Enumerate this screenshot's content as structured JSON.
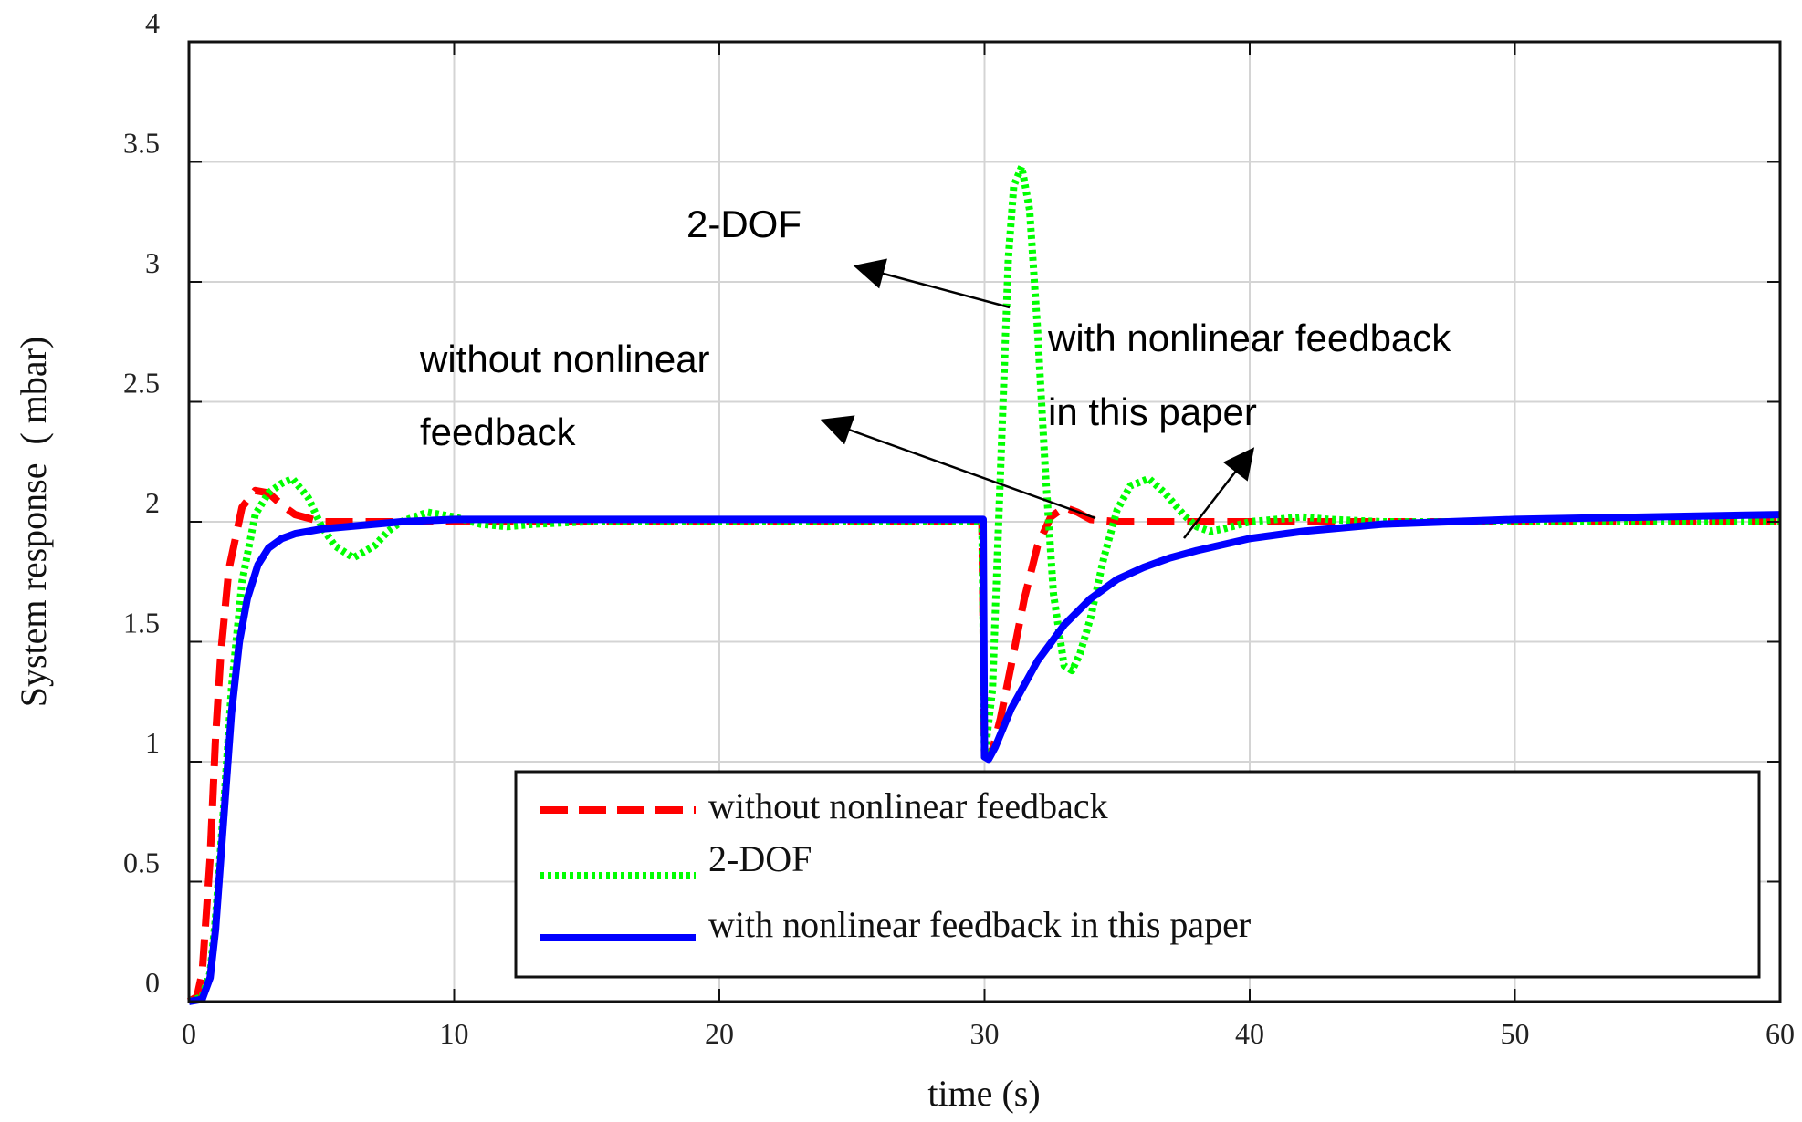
{
  "chart_data": {
    "type": "line",
    "title": "",
    "xlabel": "time (s)",
    "ylabel": "System response  ( mbar)",
    "xlim": [
      0,
      60
    ],
    "ylim": [
      0,
      4
    ],
    "grid": true,
    "x_ticks": [
      "0",
      "10",
      "20",
      "30",
      "40",
      "50",
      "60"
    ],
    "y_ticks": [
      "0",
      "0.5",
      "1",
      "1.5",
      "2",
      "2.5",
      "3",
      "3.5",
      "4"
    ],
    "legend_position": "bottom-right",
    "series": [
      {
        "name": "without nonlinear feedback",
        "color": "#ff0000",
        "style": "dashed",
        "x": [
          0,
          0.3,
          0.5,
          0.8,
          1.0,
          1.2,
          1.5,
          2.0,
          2.5,
          3.0,
          3.5,
          4.0,
          5.0,
          6.0,
          8.0,
          10.0,
          20.0,
          29.9,
          30.0,
          30.3,
          30.6,
          31.0,
          31.5,
          32.0,
          32.5,
          33.0,
          33.5,
          34.0,
          35.0,
          36.0,
          40.0,
          50.0,
          60.0
        ],
        "y": [
          0,
          0.02,
          0.12,
          0.6,
          1.1,
          1.45,
          1.8,
          2.06,
          2.13,
          2.12,
          2.07,
          2.03,
          2.0,
          2.0,
          2.0,
          2.0,
          2.0,
          2.0,
          1.02,
          1.05,
          1.18,
          1.4,
          1.68,
          1.9,
          2.02,
          2.06,
          2.04,
          2.01,
          2.0,
          2.0,
          2.0,
          2.0,
          2.0
        ]
      },
      {
        "name": "2-DOF",
        "color": "#00ff00",
        "style": "dotted",
        "x": [
          0,
          0.5,
          0.8,
          1.0,
          1.3,
          1.6,
          2.0,
          2.5,
          3.0,
          3.5,
          3.9,
          4.5,
          5.0,
          5.5,
          6.2,
          7.0,
          7.5,
          8.0,
          9.0,
          10.0,
          11.0,
          12.0,
          13.0,
          15.0,
          20.0,
          29.9,
          30.0,
          30.3,
          30.6,
          30.9,
          31.1,
          31.4,
          31.7,
          32.0,
          32.3,
          32.6,
          33.0,
          33.3,
          33.6,
          34.0,
          34.5,
          35.0,
          35.5,
          36.2,
          36.8,
          37.5,
          38.0,
          38.5,
          39.0,
          40.0,
          41.0,
          42.0,
          43.0,
          45.0,
          50.0,
          60.0
        ],
        "y": [
          0,
          0.02,
          0.12,
          0.35,
          0.8,
          1.3,
          1.75,
          2.03,
          2.12,
          2.16,
          2.18,
          2.1,
          1.98,
          1.9,
          1.85,
          1.9,
          1.96,
          2.0,
          2.04,
          2.02,
          1.99,
          1.98,
          1.99,
          2.0,
          2.0,
          2.0,
          1.02,
          1.3,
          2.2,
          3.1,
          3.4,
          3.48,
          3.3,
          2.8,
          2.2,
          1.7,
          1.4,
          1.38,
          1.45,
          1.6,
          1.85,
          2.05,
          2.15,
          2.18,
          2.12,
          2.03,
          1.98,
          1.96,
          1.97,
          2.0,
          2.01,
          2.02,
          2.01,
          2.0,
          2.0,
          2.0
        ]
      },
      {
        "name": "with nonlinear feedback in this paper",
        "color": "#0000ff",
        "style": "solid",
        "x": [
          0,
          0.5,
          0.8,
          1.0,
          1.3,
          1.6,
          1.9,
          2.2,
          2.6,
          3.0,
          3.5,
          4.0,
          5.0,
          6.0,
          8.0,
          10.0,
          20.0,
          29.95,
          30.0,
          30.15,
          30.4,
          31.0,
          32.0,
          33.0,
          34.0,
          35.0,
          36.0,
          37.0,
          38.0,
          40.0,
          42.0,
          45.0,
          50.0,
          55.0,
          60.0
        ],
        "y": [
          0,
          0.01,
          0.1,
          0.3,
          0.75,
          1.2,
          1.5,
          1.68,
          1.82,
          1.89,
          1.93,
          1.95,
          1.97,
          1.98,
          2.0,
          2.01,
          2.01,
          2.01,
          1.02,
          1.01,
          1.06,
          1.22,
          1.42,
          1.57,
          1.68,
          1.76,
          1.81,
          1.85,
          1.88,
          1.93,
          1.96,
          1.99,
          2.01,
          2.02,
          2.03
        ]
      }
    ],
    "annotations": [
      {
        "text": "2-DOF"
      },
      {
        "text": "without nonlinear"
      },
      {
        "text": "feedback"
      },
      {
        "text": "with nonlinear feedback"
      },
      {
        "text": "in this paper"
      }
    ]
  }
}
